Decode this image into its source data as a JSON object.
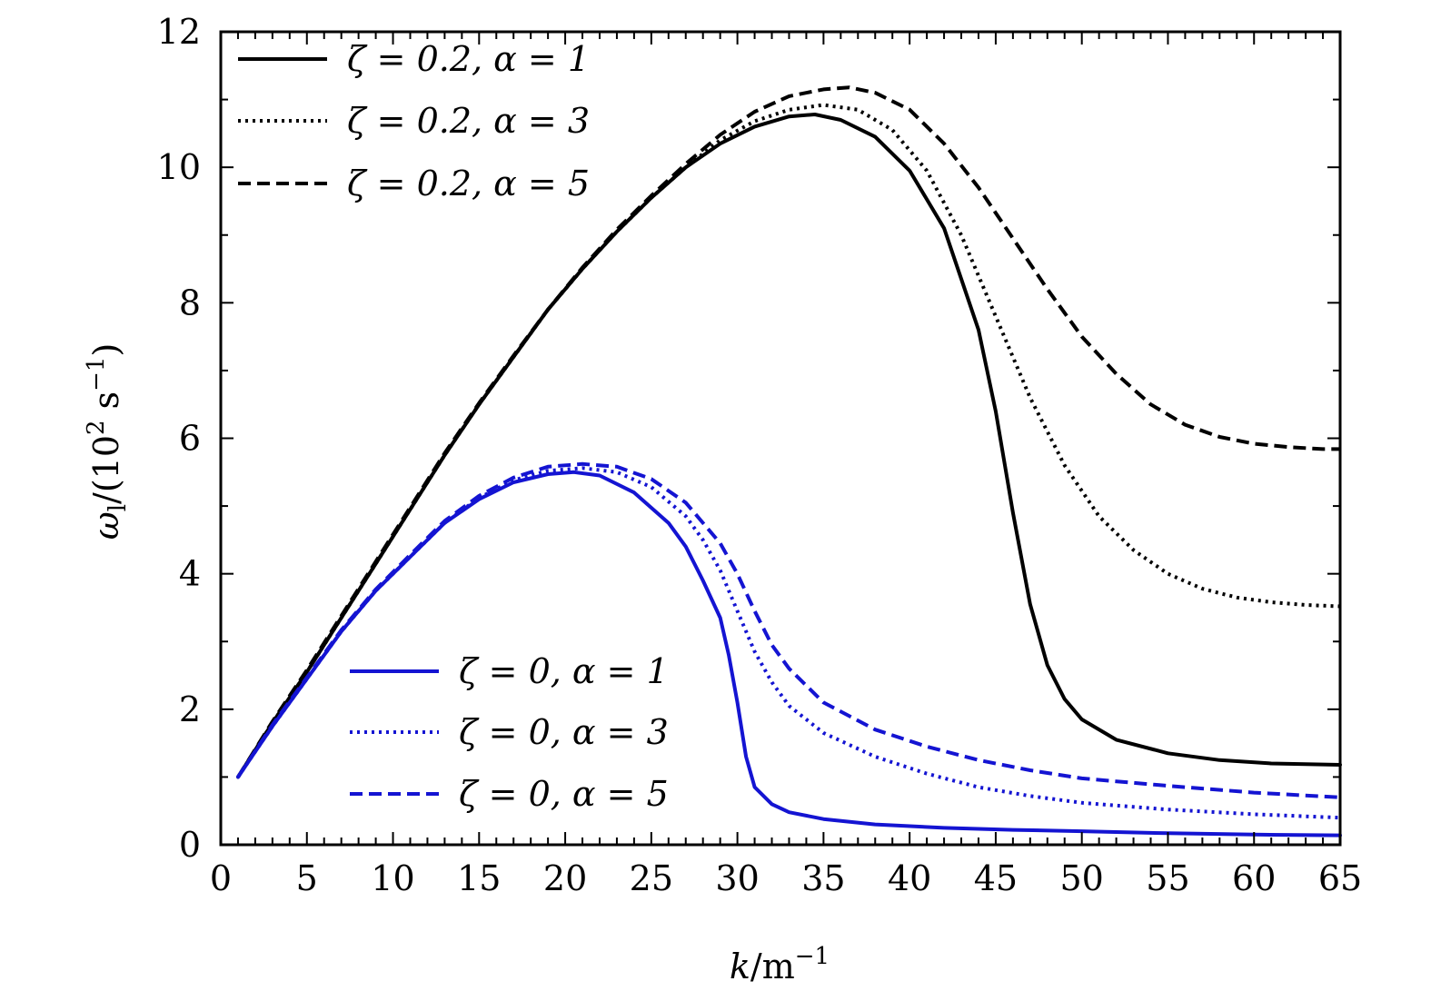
{
  "chart_data": {
    "type": "line",
    "title": "",
    "xlabel": "k/m⁻¹",
    "ylabel": "ωₗ/(10² s⁻¹)",
    "xlim": [
      0,
      65
    ],
    "ylim": [
      0,
      12
    ],
    "x_ticks": [
      0,
      5,
      10,
      15,
      20,
      25,
      30,
      35,
      40,
      45,
      50,
      55,
      60,
      65
    ],
    "x_tick_labels": [
      "0",
      "5",
      "10",
      "15",
      "20",
      "25",
      "30",
      "35",
      "40",
      "45",
      "50",
      "55",
      "60",
      "65"
    ],
    "y_ticks": [
      0,
      2,
      4,
      6,
      8,
      10,
      12
    ],
    "y_tick_labels": [
      "0",
      "2",
      "4",
      "6",
      "8",
      "10",
      "12"
    ],
    "grid": false,
    "legend_placement": [
      "top-left",
      "bottom-center"
    ],
    "series": [
      {
        "name": "ζ = 0.2,  α = 1",
        "color": "#000000",
        "style": "solid",
        "x": [
          1,
          3,
          5,
          7,
          9,
          11,
          13,
          15,
          17,
          19,
          21,
          23,
          25,
          27,
          29,
          31,
          33,
          34.5,
          36,
          38,
          40,
          42,
          44,
          45,
          46,
          47,
          48,
          49,
          50,
          52,
          55,
          58,
          61,
          65
        ],
        "y": [
          1.0,
          1.8,
          2.55,
          3.35,
          4.15,
          4.95,
          5.75,
          6.5,
          7.2,
          7.9,
          8.5,
          9.05,
          9.55,
          10.0,
          10.35,
          10.6,
          10.75,
          10.78,
          10.7,
          10.45,
          9.95,
          9.1,
          7.6,
          6.4,
          4.9,
          3.55,
          2.65,
          2.15,
          1.85,
          1.55,
          1.35,
          1.25,
          1.2,
          1.18
        ]
      },
      {
        "name": "ζ = 0.2,  α = 3",
        "color": "#000000",
        "style": "dotted",
        "x": [
          1,
          3,
          5,
          7,
          9,
          11,
          13,
          15,
          17,
          19,
          21,
          23,
          25,
          27,
          29,
          31,
          33,
          35,
          37,
          39,
          41,
          43,
          45,
          47,
          49,
          51,
          53,
          55,
          57,
          59,
          61,
          63,
          65
        ],
        "y": [
          1.0,
          1.8,
          2.55,
          3.35,
          4.15,
          4.95,
          5.75,
          6.5,
          7.2,
          7.9,
          8.5,
          9.05,
          9.55,
          10.0,
          10.4,
          10.68,
          10.85,
          10.92,
          10.85,
          10.55,
          9.95,
          9.0,
          7.8,
          6.6,
          5.6,
          4.85,
          4.35,
          4.0,
          3.78,
          3.65,
          3.58,
          3.54,
          3.52
        ]
      },
      {
        "name": "ζ = 0.2,  α = 5",
        "color": "#000000",
        "style": "dashed",
        "x": [
          1,
          3,
          5,
          7,
          9,
          11,
          13,
          15,
          17,
          19,
          21,
          23,
          25,
          27,
          29,
          31,
          33,
          35,
          36.5,
          38,
          40,
          42,
          44,
          46,
          48,
          50,
          52,
          54,
          56,
          58,
          60,
          62,
          64,
          65
        ],
        "y": [
          1.0,
          1.82,
          2.58,
          3.38,
          4.18,
          4.98,
          5.78,
          6.52,
          7.22,
          7.9,
          8.52,
          9.08,
          9.58,
          10.05,
          10.48,
          10.82,
          11.05,
          11.15,
          11.18,
          11.1,
          10.85,
          10.35,
          9.7,
          8.95,
          8.2,
          7.5,
          6.95,
          6.5,
          6.2,
          6.02,
          5.92,
          5.87,
          5.84,
          5.84
        ]
      },
      {
        "name": "ζ = 0,  α = 1",
        "color": "#1414d2",
        "style": "solid",
        "x": [
          1,
          3,
          5,
          7,
          9,
          11,
          13,
          15,
          17,
          19,
          20.5,
          22,
          24,
          26,
          27,
          28,
          29,
          29.5,
          30,
          30.5,
          31,
          32,
          33,
          35,
          38,
          42,
          46,
          50,
          55,
          60,
          65
        ],
        "y": [
          1.0,
          1.75,
          2.45,
          3.15,
          3.75,
          4.25,
          4.75,
          5.1,
          5.35,
          5.47,
          5.5,
          5.45,
          5.2,
          4.75,
          4.4,
          3.9,
          3.35,
          2.8,
          2.1,
          1.3,
          0.85,
          0.6,
          0.48,
          0.38,
          0.3,
          0.25,
          0.22,
          0.2,
          0.17,
          0.15,
          0.14
        ]
      },
      {
        "name": "ζ = 0,  α = 3",
        "color": "#1414d2",
        "style": "dotted",
        "x": [
          1,
          3,
          5,
          7,
          9,
          11,
          13,
          15,
          17,
          19,
          21,
          23,
          25,
          27,
          28,
          29,
          30,
          31,
          32,
          33,
          35,
          38,
          41,
          44,
          47,
          50,
          55,
          60,
          65
        ],
        "y": [
          1.0,
          1.75,
          2.45,
          3.15,
          3.75,
          4.25,
          4.75,
          5.12,
          5.38,
          5.52,
          5.56,
          5.5,
          5.28,
          4.85,
          4.5,
          4.05,
          3.45,
          2.85,
          2.4,
          2.05,
          1.65,
          1.3,
          1.05,
          0.85,
          0.72,
          0.62,
          0.52,
          0.45,
          0.4
        ]
      },
      {
        "name": "ζ = 0,  α = 5",
        "color": "#1414d2",
        "style": "dashed",
        "x": [
          1,
          3,
          5,
          7,
          9,
          11,
          13,
          15,
          17,
          19,
          21,
          23,
          25,
          27,
          29,
          30,
          31,
          32,
          33,
          35,
          38,
          41,
          44,
          47,
          50,
          55,
          60,
          65
        ],
        "y": [
          1.0,
          1.77,
          2.47,
          3.17,
          3.77,
          4.28,
          4.78,
          5.15,
          5.42,
          5.58,
          5.62,
          5.58,
          5.4,
          5.05,
          4.45,
          4.0,
          3.45,
          2.95,
          2.6,
          2.1,
          1.7,
          1.45,
          1.25,
          1.1,
          0.98,
          0.87,
          0.77,
          0.7
        ]
      }
    ]
  }
}
